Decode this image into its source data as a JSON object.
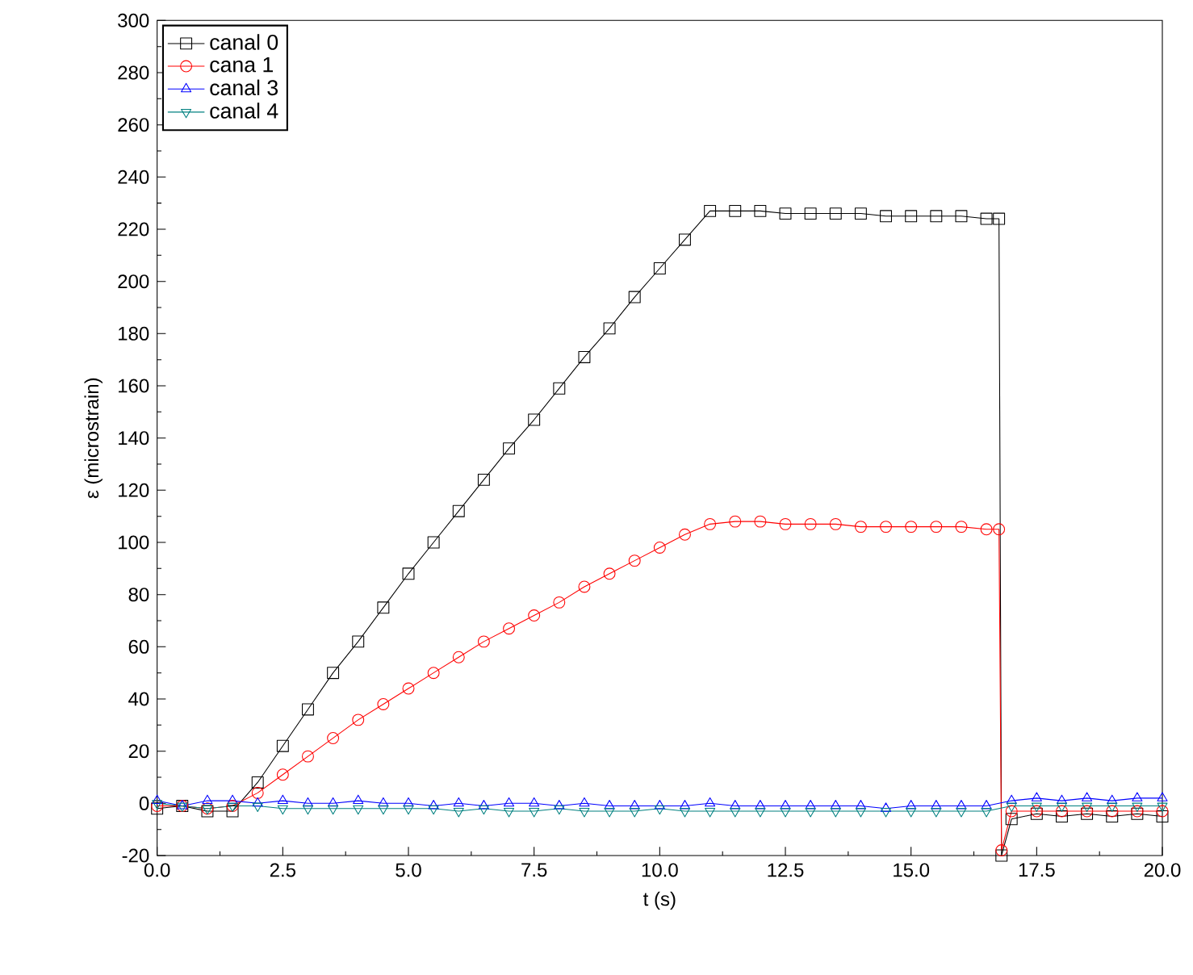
{
  "chart_data": {
    "type": "line",
    "xlabel": "t (s)",
    "ylabel": "ε (microstrain)",
    "xlim": [
      0,
      20
    ],
    "ylim": [
      -20,
      300
    ],
    "xticks": [
      {
        "value": 0,
        "label": "0.0"
      },
      {
        "value": 2.5,
        "label": "2.5"
      },
      {
        "value": 5,
        "label": "5.0"
      },
      {
        "value": 7.5,
        "label": "7.5"
      },
      {
        "value": 10,
        "label": "10.0"
      },
      {
        "value": 12.5,
        "label": "12.5"
      },
      {
        "value": 15,
        "label": "15.0"
      },
      {
        "value": 17.5,
        "label": "17.5"
      },
      {
        "value": 20,
        "label": "20.0"
      }
    ],
    "yticks": [
      -20,
      0,
      20,
      40,
      60,
      80,
      100,
      120,
      140,
      160,
      180,
      200,
      220,
      240,
      260,
      280,
      300
    ],
    "grid": false,
    "legend": "top left",
    "line_style": "solid",
    "series": [
      {
        "name": "canal 0",
        "color": "#000000",
        "marker": "square",
        "x": [
          0,
          0.5,
          1,
          1.5,
          2,
          2.5,
          3,
          3.5,
          4,
          4.5,
          5,
          5.5,
          6,
          6.5,
          7,
          7.5,
          8,
          8.5,
          9,
          9.5,
          10,
          10.5,
          11,
          11.5,
          12,
          12.5,
          13,
          13.5,
          14,
          14.5,
          15,
          15.5,
          16,
          16.5,
          16.75,
          16.8,
          17,
          17.5,
          18,
          18.5,
          19,
          19.5,
          20
        ],
        "values": [
          -2,
          -1,
          -3,
          -3,
          8,
          22,
          36,
          50,
          62,
          75,
          88,
          100,
          112,
          124,
          136,
          147,
          159,
          171,
          182,
          194,
          205,
          216,
          227,
          227,
          227,
          226,
          226,
          226,
          226,
          225,
          225,
          225,
          225,
          224,
          224,
          -20,
          -6,
          -4,
          -5,
          -4,
          -5,
          -4,
          -5
        ]
      },
      {
        "name": "cana 1",
        "color": "#ff0000",
        "marker": "circle",
        "x": [
          0,
          0.5,
          1,
          1.5,
          2,
          2.5,
          3,
          3.5,
          4,
          4.5,
          5,
          5.5,
          6,
          6.5,
          7,
          7.5,
          8,
          8.5,
          9,
          9.5,
          10,
          10.5,
          11,
          11.5,
          12,
          12.5,
          13,
          13.5,
          14,
          14.5,
          15,
          15.5,
          16,
          16.5,
          16.75,
          16.8,
          17,
          17.5,
          18,
          18.5,
          19,
          19.5,
          20
        ],
        "values": [
          -1,
          -1,
          -2,
          -1,
          4,
          11,
          18,
          25,
          32,
          38,
          44,
          50,
          56,
          62,
          67,
          72,
          77,
          83,
          88,
          93,
          98,
          103,
          107,
          108,
          108,
          107,
          107,
          107,
          106,
          106,
          106,
          106,
          106,
          105,
          105,
          -18,
          -3,
          -3,
          -3,
          -3,
          -3,
          -3,
          -3
        ]
      },
      {
        "name": "canal 3",
        "color": "#0000ff",
        "marker": "triangle",
        "x": [
          0,
          0.5,
          1,
          1.5,
          2,
          2.5,
          3,
          3.5,
          4,
          4.5,
          5,
          5.5,
          6,
          6.5,
          7,
          7.5,
          8,
          8.5,
          9,
          9.5,
          10,
          10.5,
          11,
          11.5,
          12,
          12.5,
          13,
          13.5,
          14,
          14.5,
          15,
          15.5,
          16,
          16.5,
          17,
          17.5,
          18,
          18.5,
          19,
          19.5,
          20
        ],
        "values": [
          1,
          -1,
          1,
          1,
          0,
          1,
          0,
          0,
          1,
          0,
          0,
          -1,
          0,
          -1,
          0,
          0,
          -1,
          0,
          -1,
          -1,
          -1,
          -1,
          0,
          -1,
          -1,
          -1,
          -1,
          -1,
          -1,
          -2,
          -1,
          -1,
          -1,
          -1,
          1,
          2,
          1,
          2,
          1,
          2,
          2
        ]
      },
      {
        "name": "canal 4",
        "color": "#008080",
        "marker": "triangle down",
        "x": [
          0,
          0.5,
          1,
          1.5,
          2,
          2.5,
          3,
          3.5,
          4,
          4.5,
          5,
          5.5,
          6,
          6.5,
          7,
          7.5,
          8,
          8.5,
          9,
          9.5,
          10,
          10.5,
          11,
          11.5,
          12,
          12.5,
          13,
          13.5,
          14,
          14.5,
          15,
          15.5,
          16,
          16.5,
          17,
          17.5,
          18,
          18.5,
          19,
          19.5,
          20
        ],
        "values": [
          0,
          -1,
          -2,
          -1,
          -1,
          -2,
          -2,
          -2,
          -2,
          -2,
          -2,
          -2,
          -3,
          -2,
          -3,
          -3,
          -2,
          -3,
          -3,
          -3,
          -2,
          -3,
          -3,
          -3,
          -3,
          -3,
          -3,
          -3,
          -3,
          -3,
          -3,
          -3,
          -3,
          -3,
          -1,
          -1,
          -1,
          -1,
          -1,
          -1,
          -1
        ]
      }
    ]
  }
}
